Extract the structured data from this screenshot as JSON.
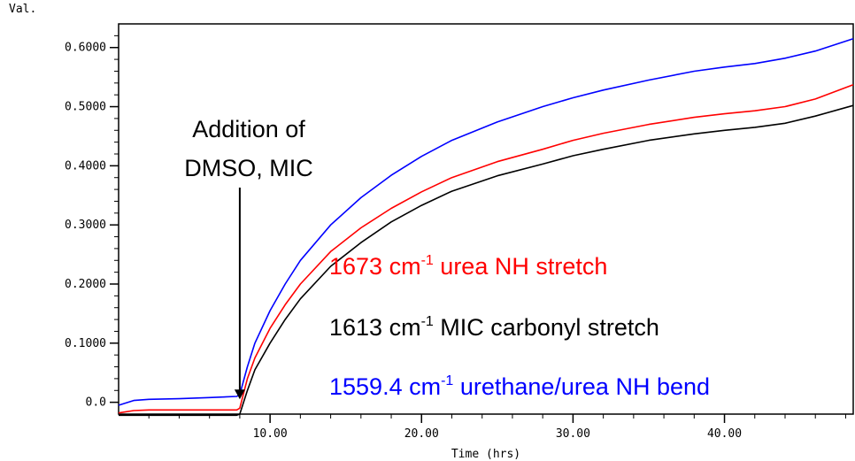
{
  "chart_data": {
    "type": "line",
    "xlabel": "Time (hrs)",
    "ylabel": "Val.",
    "xlim": [
      0,
      48.5
    ],
    "ylim": [
      -0.02,
      0.64
    ],
    "x_ticks": [
      10,
      20,
      30,
      40
    ],
    "x_tick_labels": [
      "10.00",
      "20.00",
      "30.00",
      "40.00"
    ],
    "y_ticks": [
      0.0,
      0.1,
      0.2,
      0.3,
      0.4,
      0.5,
      0.6
    ],
    "y_tick_labels": [
      "0.0",
      "0.1000",
      "0.2000",
      "0.3000",
      "0.4000",
      "0.5000",
      "0.6000"
    ],
    "grid": false,
    "annotation": {
      "line1": "Addition of",
      "line2": "DMSO, MIC",
      "arrow_x": 8.0,
      "arrow_y": 0.005
    },
    "series": [
      {
        "name": "1673 cm-1 urea NH stretch",
        "legend_number": "1673 cm",
        "legend_sup": "-1",
        "legend_desc": " urea NH stretch",
        "color": "#ff0000",
        "x": [
          0,
          1,
          2,
          4,
          6,
          7.8,
          8.0,
          8.5,
          9,
          10,
          11,
          12,
          14,
          16,
          18,
          20,
          22,
          25,
          28,
          30,
          32,
          35,
          38,
          40,
          42,
          44,
          46,
          48.5
        ],
        "y": [
          -0.018,
          -0.014,
          -0.013,
          -0.013,
          -0.013,
          -0.013,
          -0.01,
          0.04,
          0.075,
          0.125,
          0.165,
          0.2,
          0.255,
          0.295,
          0.328,
          0.356,
          0.38,
          0.407,
          0.428,
          0.443,
          0.455,
          0.47,
          0.482,
          0.488,
          0.493,
          0.5,
          0.513,
          0.537
        ]
      },
      {
        "name": "1613 cm-1 MIC carbonyl stretch",
        "legend_number": "1613 cm",
        "legend_sup": "-1",
        "legend_desc": " MIC carbonyl stretch",
        "color": "#000000",
        "x": [
          0,
          1,
          2,
          4,
          6,
          7.8,
          8.0,
          8.5,
          9,
          10,
          11,
          12,
          14,
          16,
          18,
          20,
          22,
          25,
          28,
          30,
          32,
          35,
          38,
          40,
          42,
          44,
          46,
          48.5
        ],
        "y": [
          -0.022,
          -0.022,
          -0.022,
          -0.022,
          -0.022,
          -0.022,
          -0.02,
          0.02,
          0.055,
          0.1,
          0.14,
          0.175,
          0.23,
          0.27,
          0.305,
          0.333,
          0.357,
          0.383,
          0.403,
          0.417,
          0.428,
          0.443,
          0.454,
          0.46,
          0.465,
          0.472,
          0.484,
          0.502
        ]
      },
      {
        "name": "1559.4 cm-1 urethane/urea NH bend",
        "legend_number": "1559.4 cm",
        "legend_sup": "-1",
        "legend_desc": " urethane/urea NH bend",
        "color": "#0000ff",
        "x": [
          0,
          1,
          2,
          4,
          6,
          7.8,
          8.0,
          8.5,
          9,
          10,
          11,
          12,
          14,
          16,
          18,
          20,
          22,
          25,
          28,
          30,
          32,
          35,
          38,
          40,
          42,
          44,
          46,
          48.5
        ],
        "y": [
          -0.005,
          0.003,
          0.005,
          0.006,
          0.008,
          0.01,
          0.013,
          0.06,
          0.1,
          0.155,
          0.2,
          0.24,
          0.3,
          0.346,
          0.384,
          0.416,
          0.443,
          0.474,
          0.5,
          0.515,
          0.528,
          0.545,
          0.56,
          0.567,
          0.573,
          0.582,
          0.594,
          0.615
        ]
      }
    ]
  }
}
